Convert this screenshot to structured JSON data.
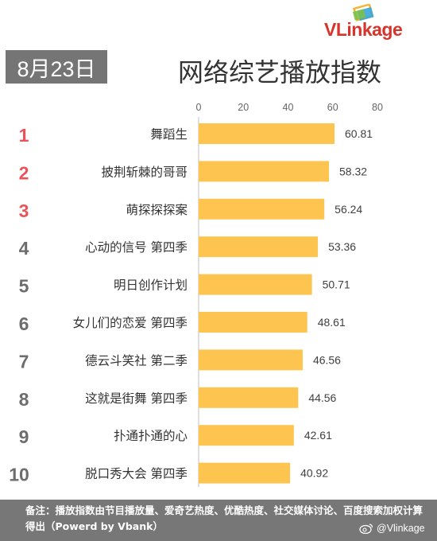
{
  "header": {
    "date": "8月23日",
    "title": "网络综艺播放指数"
  },
  "logo": {
    "text_v": "VL",
    "text_rest": "inkage",
    "icon": "vlinkage-logo-icon"
  },
  "colors": {
    "bar": "#fdc44f",
    "rank_top": "#e8545a",
    "rank_other": "#6d6d6d",
    "footer_bg": "#777777",
    "logo_red": "#d9342b"
  },
  "chart_data": {
    "type": "bar",
    "orientation": "horizontal",
    "title": "网络综艺播放指数",
    "xlim": [
      0,
      80
    ],
    "x_ticks": [
      0,
      20,
      40,
      60,
      80
    ],
    "x_axis_position": "top",
    "grid": false,
    "ranks": [
      "1",
      "2",
      "3",
      "4",
      "5",
      "6",
      "7",
      "8",
      "9",
      "10"
    ],
    "categories": [
      "舞蹈生",
      "披荆斩棘的哥哥",
      "萌探探探案",
      "心动的信号 第四季",
      "明日创作计划",
      "女儿们的恋爱 第四季",
      "德云斗笑社 第二季",
      "这就是街舞 第四季",
      "扑通扑通的心",
      "脱口秀大会 第四季"
    ],
    "values": [
      60.81,
      58.32,
      56.24,
      53.36,
      50.71,
      48.61,
      46.56,
      44.56,
      42.61,
      40.92
    ],
    "value_labels": [
      "60.81",
      "58.32",
      "56.24",
      "53.36",
      "50.71",
      "48.61",
      "46.56",
      "44.56",
      "42.61",
      "40.92"
    ]
  },
  "footer": {
    "note": "备注：播放指数由节目播放量、爱奇艺热度、优酷热度、社交媒体讨论、百度搜索加权计算得出（Powerd by Vbank）",
    "watermark": "@Vlinkage",
    "watermark_icon": "weibo-icon"
  }
}
